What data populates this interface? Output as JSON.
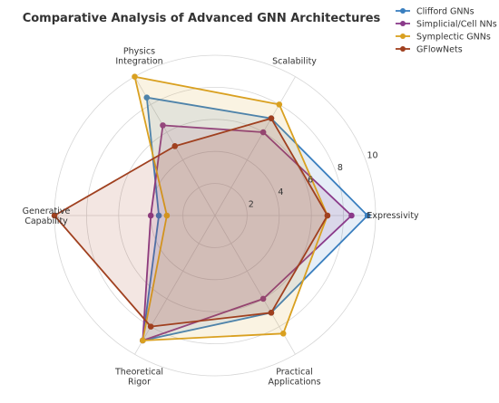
{
  "chart_data": {
    "type": "radar",
    "title": "Comparative Analysis of Advanced GNN Architectures",
    "axes": [
      "Expressivity",
      "Scalability",
      "Physics\nIntegration",
      "Generative\nCapability",
      "Theoretical\nRigor",
      "Practical\nApplications"
    ],
    "rlim": [
      0,
      10
    ],
    "rticks": [
      2,
      4,
      6,
      8,
      10
    ],
    "grid": true,
    "legend_position": "top-right",
    "series": [
      {
        "name": "Clifford GNNs",
        "color": "#3a7fbf",
        "values": [
          9.5,
          7.0,
          8.5,
          3.5,
          9.0,
          7.0
        ]
      },
      {
        "name": "Simplicial/Cell NNs",
        "color": "#8a3a8a",
        "values": [
          8.5,
          6.0,
          6.5,
          4.0,
          9.0,
          6.0
        ]
      },
      {
        "name": "Symplectic GNNs",
        "color": "#d9a020",
        "values": [
          7.0,
          8.0,
          10.0,
          3.0,
          9.0,
          8.5
        ]
      },
      {
        "name": "GFlowNets",
        "color": "#a0401f",
        "values": [
          7.0,
          7.0,
          5.0,
          10.0,
          8.0,
          7.0
        ]
      }
    ]
  }
}
